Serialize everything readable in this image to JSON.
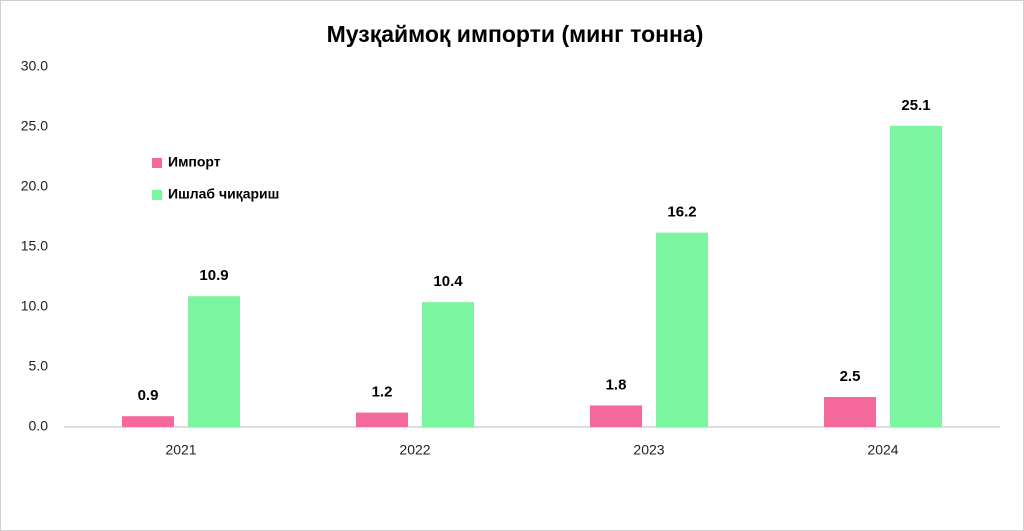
{
  "chart_data": {
    "type": "bar",
    "title": "Музқаймоқ импорти (минг тонна)",
    "categories": [
      "2021",
      "2022",
      "2023",
      "2024"
    ],
    "series": [
      {
        "name": "Импорт",
        "color": "#f5689b",
        "values": [
          0.9,
          1.2,
          1.8,
          2.5
        ]
      },
      {
        "name": "Ишлаб чиқариш",
        "color": "#7cf5a0",
        "values": [
          10.9,
          10.4,
          16.2,
          25.1
        ]
      }
    ],
    "ylim": [
      0,
      30
    ],
    "yticks": [
      {
        "value": 0,
        "label": "0.0"
      },
      {
        "value": 5,
        "label": "5.0"
      },
      {
        "value": 10,
        "label": "10.0"
      },
      {
        "value": 15,
        "label": "15.0"
      },
      {
        "value": 20,
        "label": "20.0"
      },
      {
        "value": 25,
        "label": "25.0"
      },
      {
        "value": 30,
        "label": "30.0"
      }
    ],
    "grid": false,
    "legend": "upper-left"
  }
}
